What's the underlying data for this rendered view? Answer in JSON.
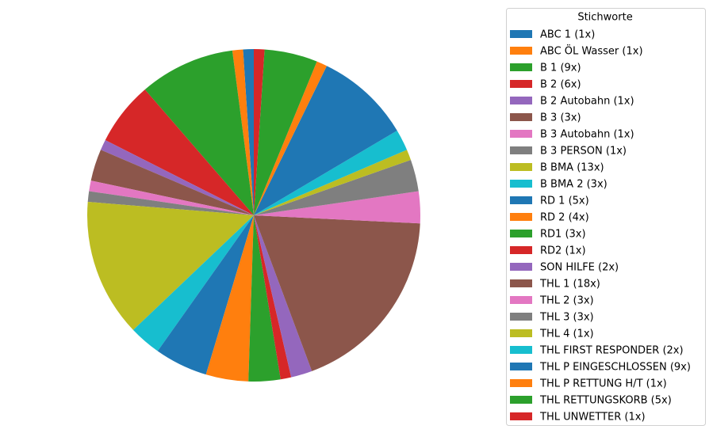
{
  "chart_data": {
    "type": "pie",
    "legend_title": "Stichworte",
    "legend": "right",
    "start_angle": 90,
    "categories": [
      "ABC 1 (1x)",
      "ABC ÖL Wasser (1x)",
      "B 1 (9x)",
      "B 2 (6x)",
      "B 2 Autobahn (1x)",
      "B 3 (3x)",
      "B 3 Autobahn (1x)",
      "B 3 PERSON (1x)",
      "B BMA (13x)",
      "B BMA 2 (3x)",
      "RD 1 (5x)",
      "RD 2 (4x)",
      "RD1 (3x)",
      "RD2 (1x)",
      "SON HILFE (2x)",
      "THL 1 (18x)",
      "THL 2 (3x)",
      "THL 3 (3x)",
      "THL 4 (1x)",
      "THL FIRST RESPONDER (2x)",
      "THL P EINGESCHLOSSEN (9x)",
      "THL P RETTUNG H/T (1x)",
      "THL RETTUNGSKORB (5x)",
      "THL UNWETTER (1x)"
    ],
    "values": [
      1,
      1,
      9,
      6,
      1,
      3,
      1,
      1,
      13,
      3,
      5,
      4,
      3,
      1,
      2,
      18,
      3,
      3,
      1,
      2,
      9,
      1,
      5,
      1
    ],
    "colors": [
      "#1f77b4",
      "#ff7f0e",
      "#2ca02c",
      "#d62728",
      "#9467bd",
      "#8c564b",
      "#e377c2",
      "#7f7f7f",
      "#bcbd22",
      "#17becf",
      "#1f77b4",
      "#ff7f0e",
      "#2ca02c",
      "#d62728",
      "#9467bd",
      "#8c564b",
      "#e377c2",
      "#7f7f7f",
      "#bcbd22",
      "#17becf",
      "#1f77b4",
      "#ff7f0e",
      "#2ca02c",
      "#d62728"
    ]
  }
}
